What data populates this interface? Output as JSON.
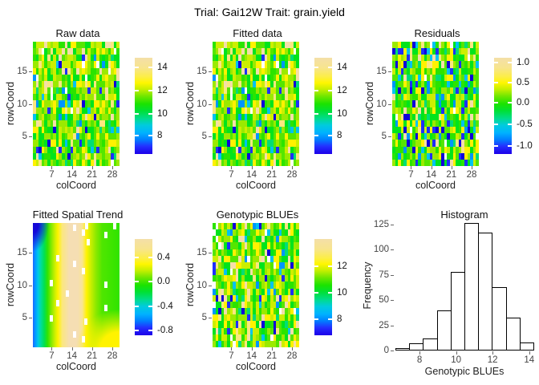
{
  "title": "Trial: Gai12W Trait: grain.yield",
  "legend_gradient": [
    [
      0,
      "#F4DFA8"
    ],
    [
      0.1,
      "#F7E48F"
    ],
    [
      0.2,
      "#FCEE45"
    ],
    [
      0.26,
      "#FFF600"
    ],
    [
      0.33,
      "#C3EF00"
    ],
    [
      0.4,
      "#6FE700"
    ],
    [
      0.48,
      "#1BE300"
    ],
    [
      0.55,
      "#00E034"
    ],
    [
      0.63,
      "#00DC8B"
    ],
    [
      0.7,
      "#00CBDD"
    ],
    [
      0.78,
      "#00B2FF"
    ],
    [
      0.85,
      "#0080FF"
    ],
    [
      0.92,
      "#2330FF"
    ],
    [
      1,
      "#1C00E8"
    ]
  ],
  "cell_palette": [
    "#9BEA00",
    "#55E600",
    "#00E41C",
    "#2BE400",
    "#CCEF00",
    "#FFF200",
    "#FBE77F",
    "#F5DEA9",
    "#00DD77",
    "#00C3F2",
    "#0096FF",
    "#1F2FFF",
    "#1000D9",
    "#FFFFFF"
  ],
  "chart_data": [
    {
      "type": "heatmap",
      "title": "Raw data",
      "xlabel": "colCoord",
      "ylabel": "rowCoord",
      "cols": 30,
      "rows": 19,
      "x_ticks": [
        7,
        14,
        21,
        28
      ],
      "y_ticks": [
        5,
        10,
        15
      ],
      "value_range": [
        7,
        15
      ],
      "legend_ticks": [
        {
          "label": "14",
          "f": 0.1
        },
        {
          "label": "12",
          "f": 0.34
        },
        {
          "label": "10",
          "f": 0.58
        },
        {
          "label": "8",
          "f": 0.81
        }
      ],
      "cells": {
        "seed": 11,
        "weights": [
          14,
          15,
          14,
          10,
          12,
          10,
          5,
          7,
          3,
          3,
          2,
          2,
          2,
          3
        ]
      }
    },
    {
      "type": "heatmap",
      "title": "Fitted data",
      "xlabel": "colCoord",
      "ylabel": "rowCoord",
      "cols": 30,
      "rows": 19,
      "x_ticks": [
        7,
        14,
        21,
        28
      ],
      "y_ticks": [
        5,
        10,
        15
      ],
      "value_range": [
        7,
        15
      ],
      "legend_ticks": [
        {
          "label": "14",
          "f": 0.1
        },
        {
          "label": "12",
          "f": 0.34
        },
        {
          "label": "10",
          "f": 0.58
        },
        {
          "label": "8",
          "f": 0.81
        }
      ],
      "cells": {
        "seed": 11,
        "weights": [
          14,
          15,
          14,
          10,
          12,
          10,
          5,
          7,
          3,
          3,
          2,
          2,
          2,
          3
        ]
      }
    },
    {
      "type": "heatmap",
      "title": "Residuals",
      "xlabel": "colCoord",
      "ylabel": "rowCoord",
      "cols": 30,
      "rows": 19,
      "x_ticks": [
        7,
        14,
        21,
        28
      ],
      "y_ticks": [
        5,
        10,
        15
      ],
      "value_range": [
        -1.2,
        1.2
      ],
      "legend_ticks": [
        {
          "label": "1.0",
          "f": 0.05
        },
        {
          "label": "0.5",
          "f": 0.26
        },
        {
          "label": "0.0",
          "f": 0.47
        },
        {
          "label": "-0.5",
          "f": 0.69
        },
        {
          "label": "-1.0",
          "f": 0.92
        }
      ],
      "cells": {
        "seed": 23,
        "weights": [
          10,
          12,
          18,
          12,
          9,
          11,
          3,
          4,
          5,
          5,
          4,
          5,
          4,
          2
        ]
      }
    },
    {
      "type": "trend",
      "title": "Fitted Spatial Trend",
      "xlabel": "colCoord",
      "ylabel": "rowCoord",
      "cols": 30,
      "rows": 19,
      "x_ticks": [
        7,
        14,
        21,
        28
      ],
      "y_ticks": [
        5,
        10,
        15
      ],
      "value_range": [
        -0.9,
        0.6
      ],
      "legend_ticks": [
        {
          "label": "0.4",
          "f": 0.19
        },
        {
          "label": "0.0",
          "f": 0.44
        },
        {
          "label": "-0.4",
          "f": 0.7
        },
        {
          "label": "-0.8",
          "f": 0.95
        }
      ],
      "h_stops": [
        [
          0,
          "#2066FF"
        ],
        [
          0.03,
          "#009EFF"
        ],
        [
          0.06,
          "#00C8E8"
        ],
        [
          0.09,
          "#00DCA0"
        ],
        [
          0.13,
          "#00E055"
        ],
        [
          0.17,
          "#30E400"
        ],
        [
          0.21,
          "#7FE900"
        ],
        [
          0.25,
          "#C6EF00"
        ],
        [
          0.29,
          "#FFF400"
        ],
        [
          0.34,
          "#FBE77F"
        ],
        [
          0.42,
          "#F5DEB3"
        ],
        [
          0.52,
          "#F5DEB3"
        ],
        [
          0.57,
          "#F9E592"
        ],
        [
          0.62,
          "#FFF300"
        ],
        [
          0.67,
          "#C8EF00"
        ],
        [
          0.73,
          "#8AE900"
        ],
        [
          0.8,
          "#4FE600"
        ],
        [
          1,
          "#2FE400"
        ]
      ],
      "corner_blue": "#1508D8",
      "corner_yellow": "#FFF300",
      "missing_cells": [
        [
          0.46,
          0.01
        ],
        [
          0.6,
          0.0
        ],
        [
          0.93,
          0.0
        ],
        [
          0.56,
          0.05
        ],
        [
          0.82,
          0.07
        ],
        [
          0.62,
          0.13
        ],
        [
          0.27,
          0.26
        ],
        [
          0.46,
          0.3
        ],
        [
          0.56,
          0.36
        ],
        [
          0.19,
          0.46
        ],
        [
          0.82,
          0.47
        ],
        [
          0.38,
          0.54
        ],
        [
          0.27,
          0.62
        ],
        [
          0.82,
          0.66
        ],
        [
          0.19,
          0.74
        ],
        [
          0.59,
          0.77
        ],
        [
          0.46,
          0.87
        ],
        [
          0.56,
          0.91
        ]
      ]
    },
    {
      "type": "heatmap",
      "title": "Genotypic BLUEs",
      "xlabel": "colCoord",
      "ylabel": "rowCoord",
      "cols": 30,
      "rows": 19,
      "x_ticks": [
        7,
        14,
        21,
        28
      ],
      "y_ticks": [
        5,
        10,
        15
      ],
      "value_range": [
        7,
        14
      ],
      "legend_ticks": [
        {
          "label": "12",
          "f": 0.28
        },
        {
          "label": "10",
          "f": 0.56
        },
        {
          "label": "8",
          "f": 0.83
        }
      ],
      "cells": {
        "seed": 37,
        "weights": [
          14,
          15,
          14,
          10,
          13,
          10,
          5,
          6,
          3,
          3,
          2,
          2,
          2,
          3
        ]
      }
    },
    {
      "type": "hist",
      "title": "Histogram",
      "xlabel": "Genotypic BLUEs",
      "ylabel": "Frequency",
      "x_ticks": [
        8,
        10,
        12,
        14
      ],
      "y_ticks": [
        0,
        25,
        50,
        75,
        100,
        125
      ],
      "bin_start": 6.68,
      "bin_width": 0.755,
      "counts": [
        2,
        7,
        12,
        40,
        78,
        127,
        117,
        63,
        33,
        8
      ],
      "xlim": [
        6.68,
        14.23
      ],
      "ylim": [
        0,
        129
      ]
    }
  ]
}
